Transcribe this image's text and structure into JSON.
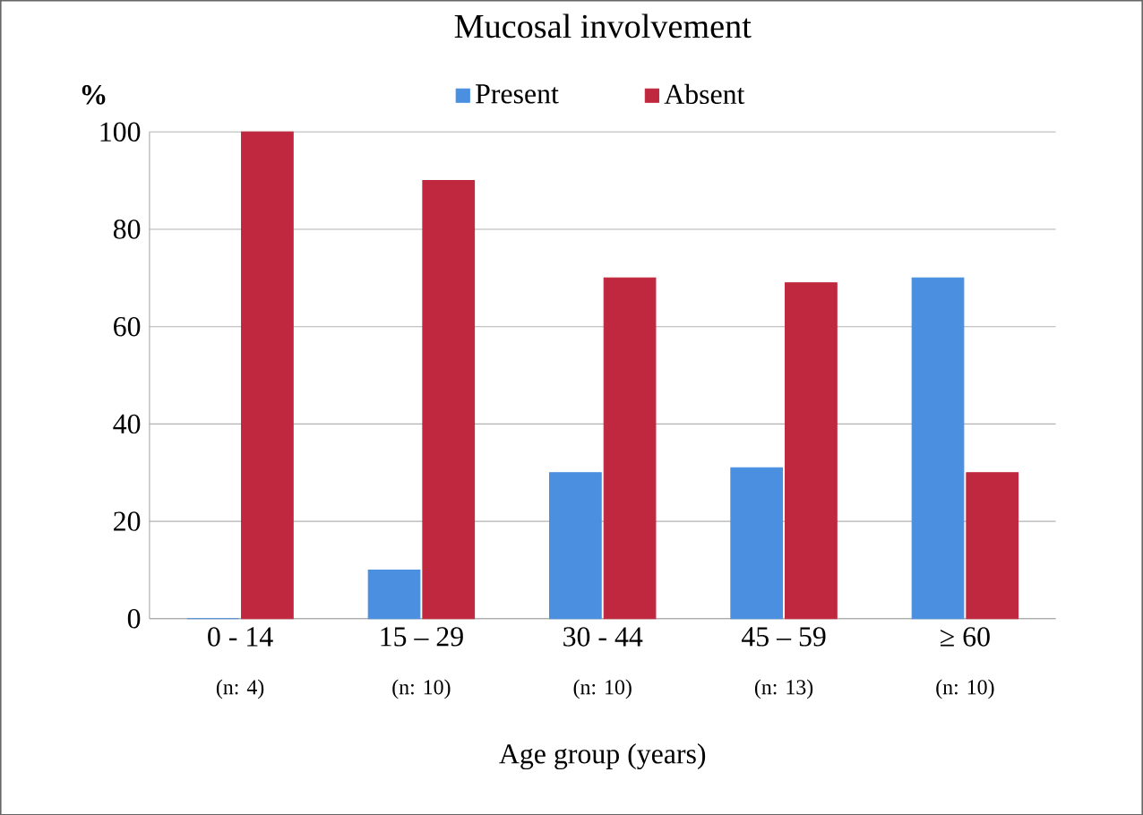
{
  "chart_data": {
    "type": "bar",
    "title": "Mucosal involvement",
    "xlabel": "Age group (years)",
    "ylabel": "%",
    "categories": [
      "0 - 14",
      "15 – 29",
      "30 - 44",
      "45 – 59",
      "≥ 60"
    ],
    "series": [
      {
        "name": "Present",
        "color": "#4a8fe0",
        "values": [
          0,
          10,
          30,
          31,
          70
        ]
      },
      {
        "name": "Absent",
        "color": "#c0283f",
        "values": [
          100,
          90,
          70,
          69,
          30
        ]
      }
    ],
    "ylim": [
      0,
      100
    ],
    "yticks": [
      0,
      20,
      40,
      60,
      80,
      100
    ],
    "grid": "y",
    "legend": "top",
    "annotations": [
      "(n: 4)",
      "(n: 10)",
      "(n: 10)",
      "(n: 13)",
      "(n: 10)"
    ]
  }
}
